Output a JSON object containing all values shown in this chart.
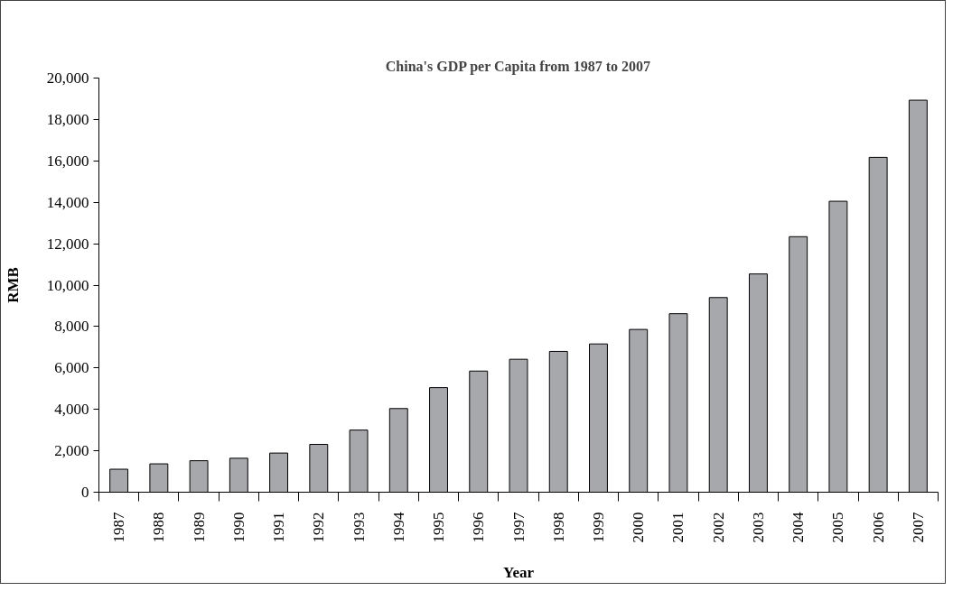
{
  "chart_data": {
    "type": "bar",
    "title": "China's GDP per Capita from 1987 to 2007",
    "xlabel": "Year",
    "ylabel": "RMB",
    "categories": [
      "1987",
      "1988",
      "1989",
      "1990",
      "1991",
      "1992",
      "1993",
      "1994",
      "1995",
      "1996",
      "1997",
      "1998",
      "1999",
      "2000",
      "2001",
      "2002",
      "2003",
      "2004",
      "2005",
      "2006",
      "2007"
    ],
    "values": [
      1110,
      1370,
      1520,
      1640,
      1890,
      2310,
      3000,
      4040,
      5050,
      5850,
      6420,
      6800,
      7160,
      7860,
      8620,
      9400,
      10540,
      12340,
      14050,
      16170,
      18930
    ],
    "color": "#a7a8ac",
    "ylim": [
      0,
      20000
    ],
    "yticks": [
      0,
      {
        "value": 2000,
        "label": "2,000"
      },
      {
        "value": 4000,
        "label": "4,000"
      },
      {
        "value": 6000,
        "label": "6,000"
      },
      {
        "value": 8000,
        "label": "8,000"
      },
      {
        "value": 10000,
        "label": "10,000"
      },
      {
        "value": 12000,
        "label": "12,000"
      },
      {
        "value": 14000,
        "label": "14,000"
      },
      {
        "value": 16000,
        "label": "16,000"
      },
      {
        "value": 18000,
        "label": "18,000"
      },
      {
        "value": 20000,
        "label": "20,000"
      }
    ],
    "grid": false
  }
}
